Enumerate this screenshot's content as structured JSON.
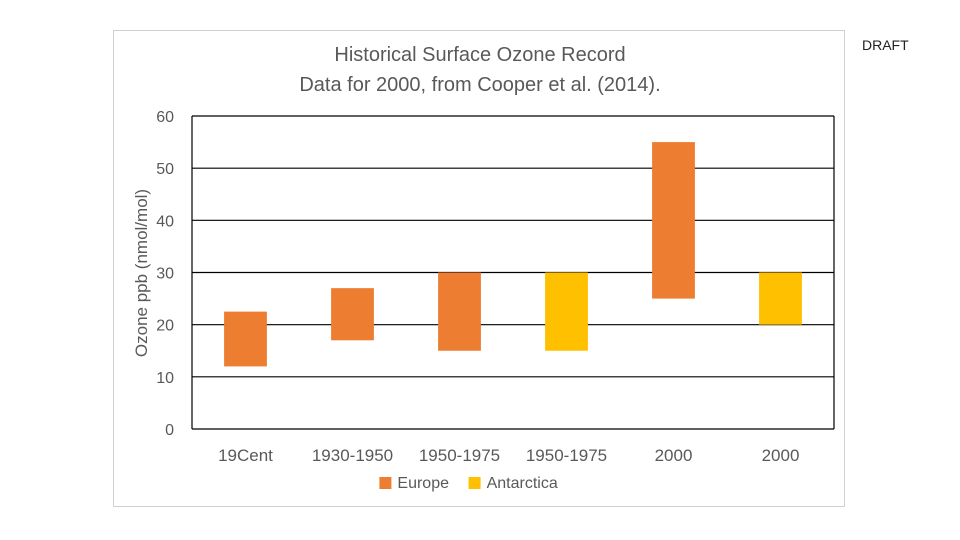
{
  "draft_label": "DRAFT",
  "chart_data": {
    "type": "bar",
    "title": "Historical Surface Ozone Record",
    "subtitle": "Data for 2000, from Cooper et al. (2014).",
    "ylabel": "Ozone ppb (nmol/mol)",
    "xlabel": "",
    "ylim": [
      0,
      60
    ],
    "yticks": [
      0,
      10,
      20,
      30,
      40,
      50,
      60
    ],
    "grid": true,
    "legend_position": "bottom",
    "categories": [
      "19Cent",
      "1930-1950",
      "1950-1975",
      "1950-1975",
      "2000",
      "2000"
    ],
    "ranges": [
      {
        "low": 12,
        "high": 22.5,
        "series": "Europe"
      },
      {
        "low": 17,
        "high": 27,
        "series": "Europe"
      },
      {
        "low": 15,
        "high": 30,
        "series": "Europe"
      },
      {
        "low": 15,
        "high": 30,
        "series": "Antarctica"
      },
      {
        "low": 25,
        "high": 55,
        "series": "Europe"
      },
      {
        "low": 20,
        "high": 30,
        "series": "Antarctica"
      }
    ],
    "series": [
      {
        "name": "Europe",
        "color": "#ED7D31"
      },
      {
        "name": "Antarctica",
        "color": "#FFC000"
      }
    ]
  }
}
